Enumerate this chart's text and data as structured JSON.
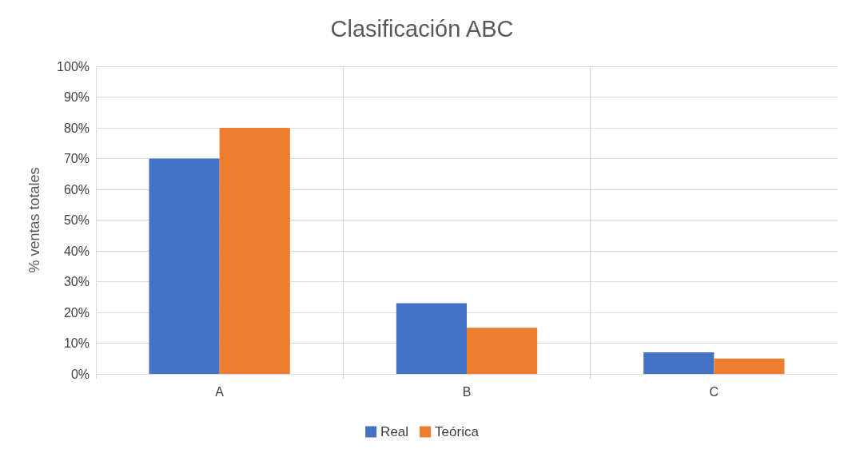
{
  "chart_data": {
    "type": "bar",
    "title": "Clasificación ABC",
    "ylabel": "% ventas totales",
    "categories": [
      "A",
      "B",
      "C"
    ],
    "series": [
      {
        "name": "Real",
        "color": "#4472c4",
        "values": [
          70,
          23,
          7
        ]
      },
      {
        "name": "Teórica",
        "color": "#ed7d31",
        "values": [
          80,
          15,
          5
        ]
      }
    ],
    "ylim": [
      0,
      100
    ],
    "yticks": [
      {
        "value": 0,
        "label": "0%"
      },
      {
        "value": 10,
        "label": "10%"
      },
      {
        "value": 20,
        "label": "20%"
      },
      {
        "value": 30,
        "label": "30%"
      },
      {
        "value": 40,
        "label": "40%"
      },
      {
        "value": 50,
        "label": "50%"
      },
      {
        "value": 60,
        "label": "60%"
      },
      {
        "value": 70,
        "label": "70%"
      },
      {
        "value": 80,
        "label": "80%"
      },
      {
        "value": 90,
        "label": "90%"
      },
      {
        "value": 100,
        "label": "100%"
      }
    ],
    "grid": true,
    "legend": "bottom"
  }
}
